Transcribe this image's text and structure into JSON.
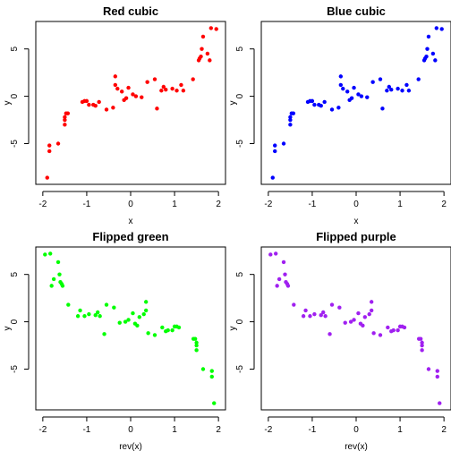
{
  "chart_data": [
    {
      "type": "scatter",
      "title": "Red cubic",
      "xlabel": "x",
      "ylabel": "y",
      "xlim": [
        -2.16,
        2.16
      ],
      "ylim": [
        -9.3,
        7.9
      ],
      "xticks": [
        -2,
        -1,
        0,
        1,
        2
      ],
      "yticks": [
        -5,
        0,
        5
      ],
      "color": "#ff0000",
      "series": [
        {
          "x": [
            -1.9,
            -1.85,
            -1.85,
            -1.65,
            -1.5,
            -1.5,
            -1.5,
            -1.47,
            -1.43,
            -1.1,
            -1.05,
            -1.0,
            -0.95,
            -0.85,
            -0.8,
            -0.72,
            -0.55,
            -0.4,
            -0.35,
            -0.35,
            -0.3,
            -0.2,
            -0.15,
            -0.1,
            -0.05,
            0.05,
            0.12,
            0.25,
            0.38,
            0.55,
            0.6,
            0.7,
            0.75,
            0.8,
            0.95,
            1.05,
            1.15,
            1.2,
            1.42,
            1.55,
            1.57,
            1.6,
            1.62,
            1.65,
            1.75,
            1.8,
            1.83,
            1.95
          ],
          "y": [
            -8.6,
            -5.8,
            -5.2,
            -5.0,
            -3.0,
            -2.5,
            -2.2,
            -1.8,
            -1.8,
            -0.6,
            -0.5,
            -0.5,
            -0.9,
            -0.9,
            -1.0,
            -0.6,
            -1.4,
            -1.2,
            1.2,
            2.1,
            0.8,
            0.5,
            -0.4,
            -0.2,
            0.9,
            0.2,
            0.0,
            -0.1,
            1.5,
            1.8,
            -1.3,
            0.6,
            1.0,
            0.7,
            0.8,
            0.6,
            1.2,
            0.6,
            1.8,
            3.8,
            4.0,
            4.2,
            5.0,
            6.3,
            4.5,
            3.8,
            7.2,
            7.1
          ]
        }
      ]
    },
    {
      "type": "scatter",
      "title": "Blue cubic",
      "xlabel": "x",
      "ylabel": "y",
      "xlim": [
        -2.16,
        2.16
      ],
      "ylim": [
        -9.3,
        7.9
      ],
      "xticks": [
        -2,
        -1,
        0,
        1,
        2
      ],
      "yticks": [
        -5,
        0,
        5
      ],
      "color": "#0000ff",
      "series": [
        {
          "x": [
            -1.9,
            -1.85,
            -1.85,
            -1.65,
            -1.5,
            -1.5,
            -1.5,
            -1.47,
            -1.43,
            -1.1,
            -1.05,
            -1.0,
            -0.95,
            -0.85,
            -0.8,
            -0.72,
            -0.55,
            -0.4,
            -0.35,
            -0.35,
            -0.3,
            -0.2,
            -0.15,
            -0.1,
            -0.05,
            0.05,
            0.12,
            0.25,
            0.38,
            0.55,
            0.6,
            0.7,
            0.75,
            0.8,
            0.95,
            1.05,
            1.15,
            1.2,
            1.42,
            1.55,
            1.57,
            1.6,
            1.62,
            1.65,
            1.75,
            1.8,
            1.83,
            1.95
          ],
          "y": [
            -8.6,
            -5.8,
            -5.2,
            -5.0,
            -3.0,
            -2.5,
            -2.2,
            -1.8,
            -1.8,
            -0.6,
            -0.5,
            -0.5,
            -0.9,
            -0.9,
            -1.0,
            -0.6,
            -1.4,
            -1.2,
            1.2,
            2.1,
            0.8,
            0.5,
            -0.4,
            -0.2,
            0.9,
            0.2,
            0.0,
            -0.1,
            1.5,
            1.8,
            -1.3,
            0.6,
            1.0,
            0.7,
            0.8,
            0.6,
            1.2,
            0.6,
            1.8,
            3.8,
            4.0,
            4.2,
            5.0,
            6.3,
            4.5,
            3.8,
            7.2,
            7.1
          ]
        }
      ]
    },
    {
      "type": "scatter",
      "title": "Flipped green",
      "xlabel": "rev(x)",
      "ylabel": "y",
      "xlim": [
        -2.16,
        2.16
      ],
      "ylim": [
        -9.3,
        7.9
      ],
      "xticks": [
        -2,
        -1,
        0,
        1,
        2
      ],
      "yticks": [
        -5,
        0,
        5
      ],
      "color": "#00ff00",
      "series": [
        {
          "x": [
            1.9,
            1.85,
            1.85,
            1.65,
            1.5,
            1.5,
            1.5,
            1.47,
            1.43,
            1.1,
            1.05,
            1.0,
            0.95,
            0.85,
            0.8,
            0.72,
            0.55,
            0.4,
            0.35,
            0.35,
            0.3,
            0.2,
            0.15,
            0.1,
            0.05,
            -0.05,
            -0.12,
            -0.25,
            -0.38,
            -0.55,
            -0.6,
            -0.7,
            -0.75,
            -0.8,
            -0.95,
            -1.05,
            -1.15,
            -1.2,
            -1.42,
            -1.55,
            -1.57,
            -1.6,
            -1.62,
            -1.65,
            -1.75,
            -1.8,
            -1.83,
            -1.95
          ],
          "y": [
            -8.6,
            -5.8,
            -5.2,
            -5.0,
            -3.0,
            -2.5,
            -2.2,
            -1.8,
            -1.8,
            -0.6,
            -0.5,
            -0.5,
            -0.9,
            -0.9,
            -1.0,
            -0.6,
            -1.4,
            -1.2,
            1.2,
            2.1,
            0.8,
            0.5,
            -0.4,
            -0.2,
            0.9,
            0.2,
            0.0,
            -0.1,
            1.5,
            1.8,
            -1.3,
            0.6,
            1.0,
            0.7,
            0.8,
            0.6,
            1.2,
            0.6,
            1.8,
            3.8,
            4.0,
            4.2,
            5.0,
            6.3,
            4.5,
            3.8,
            7.2,
            7.1
          ]
        }
      ]
    },
    {
      "type": "scatter",
      "title": "Flipped purple",
      "xlabel": "rev(x)",
      "ylabel": "y",
      "xlim": [
        -2.16,
        2.16
      ],
      "ylim": [
        -9.3,
        7.9
      ],
      "xticks": [
        -2,
        -1,
        0,
        1,
        2
      ],
      "yticks": [
        -5,
        0,
        5
      ],
      "color": "#a020f0",
      "series": [
        {
          "x": [
            1.9,
            1.85,
            1.85,
            1.65,
            1.5,
            1.5,
            1.5,
            1.47,
            1.43,
            1.1,
            1.05,
            1.0,
            0.95,
            0.85,
            0.8,
            0.72,
            0.55,
            0.4,
            0.35,
            0.35,
            0.3,
            0.2,
            0.15,
            0.1,
            0.05,
            -0.05,
            -0.12,
            -0.25,
            -0.38,
            -0.55,
            -0.6,
            -0.7,
            -0.75,
            -0.8,
            -0.95,
            -1.05,
            -1.15,
            -1.2,
            -1.42,
            -1.55,
            -1.57,
            -1.6,
            -1.62,
            -1.65,
            -1.75,
            -1.8,
            -1.83,
            -1.95
          ],
          "y": [
            -8.6,
            -5.8,
            -5.2,
            -5.0,
            -3.0,
            -2.5,
            -2.2,
            -1.8,
            -1.8,
            -0.6,
            -0.5,
            -0.5,
            -0.9,
            -0.9,
            -1.0,
            -0.6,
            -1.4,
            -1.2,
            1.2,
            2.1,
            0.8,
            0.5,
            -0.4,
            -0.2,
            0.9,
            0.2,
            0.0,
            -0.1,
            1.5,
            1.8,
            -1.3,
            0.6,
            1.0,
            0.7,
            0.8,
            0.6,
            1.2,
            0.6,
            1.8,
            3.8,
            4.0,
            4.2,
            5.0,
            6.3,
            4.5,
            3.8,
            7.2,
            7.1
          ]
        }
      ]
    }
  ]
}
